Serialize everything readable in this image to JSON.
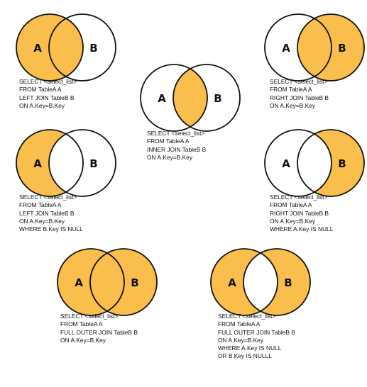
{
  "colors": {
    "fill": "#F9BE4C",
    "stroke": "#111111",
    "background": "#FFFFFF"
  },
  "circle_labels": {
    "a": "A",
    "b": "B"
  },
  "diagrams": [
    {
      "id": "left-join",
      "highlight": {
        "a_only": true,
        "intersection": true,
        "b_only": false
      },
      "sql": "SELECT <select_list>\nFROM TableA A\nLEFT JOIN TableB B\nON A.Key=B.Key"
    },
    {
      "id": "inner-join",
      "highlight": {
        "a_only": false,
        "intersection": true,
        "b_only": false
      },
      "sql": "SELECT <select_list>\nFROM TableA A\nINNER JOIN TableB B\nON A.Key=B.Key"
    },
    {
      "id": "right-join",
      "highlight": {
        "a_only": false,
        "intersection": true,
        "b_only": true
      },
      "sql": "SELECT <select_list>\nFROM TableA A\nRIGHT JOIN TableB B\nON A.Key=B.Key"
    },
    {
      "id": "left-excluding-join",
      "highlight": {
        "a_only": true,
        "intersection": false,
        "b_only": false
      },
      "sql": "SELECT <select_list>\nFROM TableA A\nLEFT JOIN TableB B\nON A.Key=B.Key\nWHERE B.Key IS NULL"
    },
    {
      "id": "right-excluding-join",
      "highlight": {
        "a_only": false,
        "intersection": false,
        "b_only": true
      },
      "sql": "SELECT <select_list>\nFROM TableA A\nRIGHT JOIN TableB B\nON A.Key=B.Key\nWHERE A.Key IS NULL"
    },
    {
      "id": "full-outer-join",
      "highlight": {
        "a_only": true,
        "intersection": true,
        "b_only": true
      },
      "sql": "SELECT <select_list>\nFROM TableA A\nFULL OUTER JOIN TableB B\nON A.Key=B.Key"
    },
    {
      "id": "full-outer-excluding-join",
      "highlight": {
        "a_only": true,
        "intersection": false,
        "b_only": true
      },
      "sql": "SELECT <select_list>\nFROM TableA A\nFULL OUTER JOIN TableB B\nON A.Key=B.Key\nWHERE A.Key IS NULL\nOR B.Key IS NULLL"
    }
  ]
}
